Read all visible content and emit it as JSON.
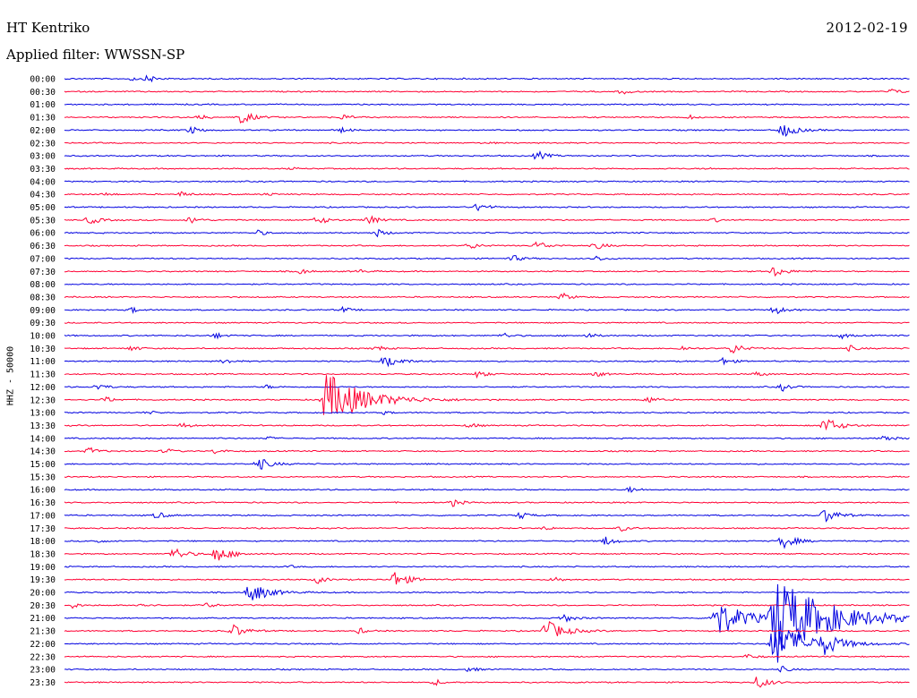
{
  "header": {
    "station": "HT Kentriko",
    "date": "2012-02-19",
    "filter_label": "Applied filter: WWSSN-SP"
  },
  "chart_data": {
    "type": "line",
    "title": "HT Kentriko",
    "subtitle": "Applied filter: WWSSN-SP",
    "ylabel": "HHZ - 50000",
    "colors": [
      "#0000e0",
      "#ff0033"
    ],
    "rows": [
      {
        "time": "00:00",
        "events": [
          [
            0.08,
            2
          ],
          [
            0.1,
            4
          ]
        ]
      },
      {
        "time": "00:30",
        "events": [
          [
            0.66,
            3
          ],
          [
            0.98,
            3
          ]
        ]
      },
      {
        "time": "01:00",
        "events": []
      },
      {
        "time": "01:30",
        "events": [
          [
            0.16,
            3
          ],
          [
            0.21,
            7
          ],
          [
            0.33,
            3
          ],
          [
            0.74,
            2
          ]
        ]
      },
      {
        "time": "02:00",
        "events": [
          [
            0.15,
            4
          ],
          [
            0.33,
            3
          ],
          [
            0.85,
            8
          ]
        ]
      },
      {
        "time": "02:30",
        "events": [
          [
            0.5,
            1
          ]
        ]
      },
      {
        "time": "03:00",
        "events": [
          [
            0.56,
            5
          ]
        ]
      },
      {
        "time": "03:30",
        "events": [
          [
            0.27,
            1
          ],
          [
            0.76,
            1
          ]
        ]
      },
      {
        "time": "04:00",
        "events": []
      },
      {
        "time": "04:30",
        "events": [
          [
            0.05,
            2
          ],
          [
            0.14,
            3
          ],
          [
            0.24,
            2
          ]
        ]
      },
      {
        "time": "05:00",
        "events": [
          [
            0.49,
            5
          ]
        ]
      },
      {
        "time": "05:30",
        "events": [
          [
            0.03,
            5
          ],
          [
            0.15,
            4
          ],
          [
            0.3,
            5
          ],
          [
            0.36,
            5
          ],
          [
            0.77,
            2
          ]
        ]
      },
      {
        "time": "06:00",
        "events": [
          [
            0.23,
            3
          ],
          [
            0.37,
            4
          ]
        ]
      },
      {
        "time": "06:30",
        "events": [
          [
            0.48,
            4
          ],
          [
            0.56,
            5
          ],
          [
            0.63,
            4
          ]
        ]
      },
      {
        "time": "07:00",
        "events": [
          [
            0.53,
            4
          ],
          [
            0.63,
            3
          ]
        ]
      },
      {
        "time": "07:30",
        "events": [
          [
            0.28,
            3
          ],
          [
            0.35,
            2
          ],
          [
            0.84,
            6
          ]
        ]
      },
      {
        "time": "08:00",
        "events": []
      },
      {
        "time": "08:30",
        "events": [
          [
            0.59,
            4
          ]
        ]
      },
      {
        "time": "09:00",
        "events": [
          [
            0.08,
            3
          ],
          [
            0.33,
            3
          ],
          [
            0.84,
            5
          ]
        ]
      },
      {
        "time": "09:30",
        "events": []
      },
      {
        "time": "10:00",
        "events": [
          [
            0.18,
            3
          ],
          [
            0.52,
            3
          ],
          [
            0.62,
            3
          ],
          [
            0.92,
            3
          ]
        ]
      },
      {
        "time": "10:30",
        "events": [
          [
            0.08,
            3
          ],
          [
            0.37,
            3
          ],
          [
            0.73,
            3
          ],
          [
            0.79,
            6
          ],
          [
            0.93,
            3
          ]
        ]
      },
      {
        "time": "11:00",
        "events": [
          [
            0.19,
            3
          ],
          [
            0.38,
            8
          ],
          [
            0.78,
            4
          ]
        ]
      },
      {
        "time": "11:30",
        "events": [
          [
            0.49,
            4
          ],
          [
            0.63,
            3
          ],
          [
            0.82,
            3
          ]
        ]
      },
      {
        "time": "12:00",
        "events": [
          [
            0.04,
            4
          ],
          [
            0.24,
            2
          ],
          [
            0.85,
            4
          ]
        ]
      },
      {
        "time": "12:30",
        "events": [
          [
            0.05,
            3
          ],
          [
            0.31,
            30
          ],
          [
            0.69,
            4
          ]
        ]
      },
      {
        "time": "13:00",
        "events": [
          [
            0.1,
            2
          ],
          [
            0.38,
            2
          ]
        ]
      },
      {
        "time": "13:30",
        "events": [
          [
            0.14,
            3
          ],
          [
            0.48,
            3
          ],
          [
            0.9,
            9
          ]
        ]
      },
      {
        "time": "14:00",
        "events": [
          [
            0.24,
            2
          ],
          [
            0.97,
            4
          ]
        ]
      },
      {
        "time": "14:30",
        "events": [
          [
            0.03,
            4
          ],
          [
            0.12,
            3
          ],
          [
            0.18,
            3
          ]
        ]
      },
      {
        "time": "15:00",
        "events": [
          [
            0.23,
            7
          ]
        ]
      },
      {
        "time": "15:30",
        "events": []
      },
      {
        "time": "16:00",
        "events": [
          [
            0.67,
            3
          ]
        ]
      },
      {
        "time": "16:30",
        "events": [
          [
            0.46,
            4
          ]
        ]
      },
      {
        "time": "17:00",
        "events": [
          [
            0.11,
            4
          ],
          [
            0.54,
            4
          ],
          [
            0.9,
            8
          ]
        ]
      },
      {
        "time": "17:30",
        "events": [
          [
            0.57,
            2
          ],
          [
            0.66,
            3
          ]
        ]
      },
      {
        "time": "18:00",
        "events": [
          [
            0.04,
            2
          ],
          [
            0.64,
            5
          ],
          [
            0.85,
            8
          ]
        ]
      },
      {
        "time": "18:30",
        "events": [
          [
            0.13,
            7
          ],
          [
            0.18,
            9
          ]
        ]
      },
      {
        "time": "19:00",
        "events": [
          [
            0.27,
            1
          ]
        ]
      },
      {
        "time": "19:30",
        "events": [
          [
            0.3,
            4
          ],
          [
            0.39,
            9
          ],
          [
            0.58,
            3
          ]
        ]
      },
      {
        "time": "20:00",
        "events": [
          [
            0.22,
            12
          ]
        ]
      },
      {
        "time": "20:30",
        "events": [
          [
            0.01,
            3
          ],
          [
            0.09,
            3
          ],
          [
            0.17,
            3
          ]
        ]
      },
      {
        "time": "21:00",
        "events": [
          [
            0.59,
            5
          ],
          [
            0.77,
            22
          ],
          [
            0.84,
            45
          ]
        ]
      },
      {
        "time": "21:30",
        "events": [
          [
            0.2,
            7
          ],
          [
            0.57,
            12
          ],
          [
            0.35,
            3
          ]
        ]
      },
      {
        "time": "22:00",
        "events": [
          [
            0.84,
            25
          ],
          [
            0.9,
            9
          ]
        ]
      },
      {
        "time": "22:30",
        "events": [
          [
            0.81,
            3
          ]
        ]
      },
      {
        "time": "23:00",
        "events": [
          [
            0.48,
            3
          ],
          [
            0.85,
            3
          ]
        ]
      },
      {
        "time": "23:30",
        "events": [
          [
            0.44,
            3
          ],
          [
            0.82,
            7
          ]
        ]
      }
    ]
  }
}
